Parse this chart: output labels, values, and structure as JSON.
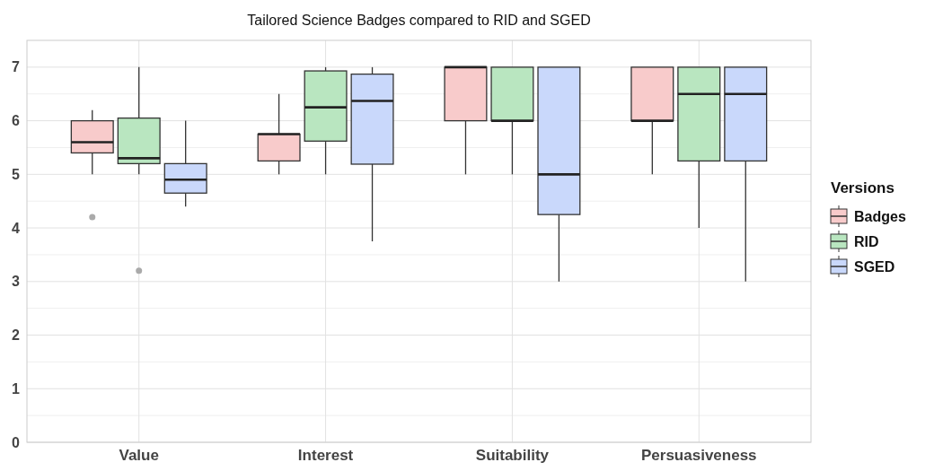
{
  "chart_data": {
    "type": "box",
    "title": "Tailored Science Badges compared to RID and SGED",
    "legend_title": "Versions",
    "legend": "right",
    "grid": true,
    "categories": [
      "Value",
      "Interest",
      "Suitability",
      "Persuasiveness"
    ],
    "ylim": [
      0,
      7.5
    ],
    "yticks": [
      0,
      1,
      2,
      3,
      4,
      5,
      6,
      7
    ],
    "series": [
      {
        "name": "Badges",
        "color": "#f8cbcb",
        "boxes": [
          {
            "low": 5,
            "q1": 5.4,
            "median": 5.6,
            "q3": 6,
            "high": 6.2,
            "outliers": [
              4.2
            ]
          },
          {
            "low": 5,
            "q1": 5.25,
            "median": 5.75,
            "q3": 5.75,
            "high": 6.5
          },
          {
            "low": 5,
            "q1": 6,
            "median": 7,
            "q3": 7,
            "high": 7
          },
          {
            "low": 5,
            "q1": 6,
            "median": 6,
            "q3": 7,
            "high": 7
          }
        ]
      },
      {
        "name": "RID",
        "color": "#b9e6c0",
        "boxes": [
          {
            "low": 5,
            "q1": 5.2,
            "median": 5.3,
            "q3": 6.05,
            "high": 7,
            "outliers": [
              3.2
            ]
          },
          {
            "low": 5,
            "q1": 5.62,
            "median": 6.25,
            "q3": 6.93,
            "high": 7
          },
          {
            "low": 5,
            "q1": 6,
            "median": 6,
            "q3": 7,
            "high": 7
          },
          {
            "low": 4,
            "q1": 5.25,
            "median": 6.5,
            "q3": 7,
            "high": 7
          }
        ]
      },
      {
        "name": "SGED",
        "color": "#c9d8fb",
        "boxes": [
          {
            "low": 4.4,
            "q1": 4.65,
            "median": 4.9,
            "q3": 5.2,
            "high": 6
          },
          {
            "low": 3.75,
            "q1": 5.19,
            "median": 6.37,
            "q3": 6.87,
            "high": 7
          },
          {
            "low": 3,
            "q1": 4.25,
            "median": 5,
            "q3": 7,
            "high": 7
          },
          {
            "low": 3,
            "q1": 5.25,
            "median": 6.5,
            "q3": 7,
            "high": 7
          }
        ]
      }
    ]
  }
}
